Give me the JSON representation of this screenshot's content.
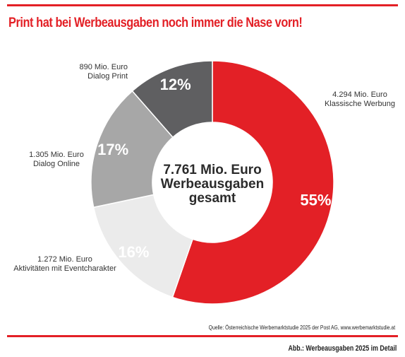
{
  "title": "Print hat bei Werbeausgaben noch immer die Nase vorn!",
  "source": "Quelle: Österreichische Werbemarktstudie 2025 der Post AG, www.werbemarktstudie.at",
  "caption": "Abb.: Werbeausgaben 2025 im Detail",
  "colors": {
    "accent": "#e32026"
  },
  "chart_data": {
    "type": "pie",
    "variant": "donut",
    "center_text": [
      "7.761 Mio. Euro",
      "Werbeausgaben",
      "gesamt"
    ],
    "slices": [
      {
        "label_lines": [
          "4.294 Mio. Euro",
          "Klassische Werbung"
        ],
        "value": 4294,
        "percent_label": "55%",
        "color": "#e32026",
        "percent_color": "#ffffff"
      },
      {
        "label_lines": [
          "1.272 Mio. Euro",
          "Aktivitäten mit Eventcharakter"
        ],
        "value": 1272,
        "percent_label": "16%",
        "color": "#ebebeb",
        "percent_color": "#ffffff"
      },
      {
        "label_lines": [
          "1.305 Mio. Euro",
          "Dialog Online"
        ],
        "value": 1305,
        "percent_label": "17%",
        "color": "#a7a7a7",
        "percent_color": "#ffffff"
      },
      {
        "label_lines": [
          "890 Mio. Euro",
          "Dialog Print"
        ],
        "value": 890,
        "percent_label": "12%",
        "color": "#5f5f61",
        "percent_color": "#ffffff"
      }
    ]
  }
}
